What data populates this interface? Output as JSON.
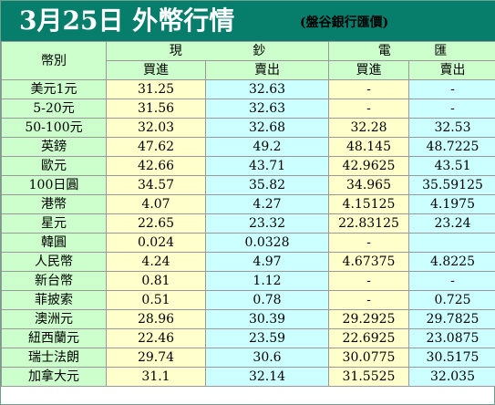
{
  "header": {
    "title": "3月25日 外幣行情",
    "subtitle": "(盤谷銀行匯價)",
    "bg_color": "#077e6c"
  },
  "table": {
    "currency_header": "幣別",
    "groups": [
      {
        "chars": [
          "現",
          "鈔"
        ]
      },
      {
        "chars": [
          "電",
          "匯"
        ]
      }
    ],
    "subheaders": [
      "買進",
      "賣出",
      "買進",
      "賣出"
    ],
    "rows": [
      {
        "name": "美元1元",
        "values": [
          "31.25",
          "32.63",
          "-",
          "-"
        ]
      },
      {
        "name": "5-20元",
        "values": [
          "31.56",
          "32.63",
          "-",
          "-"
        ]
      },
      {
        "name": "50-100元",
        "values": [
          "32.03",
          "32.68",
          "32.28",
          "32.53"
        ]
      },
      {
        "name": "英鎊",
        "values": [
          "47.62",
          "49.2",
          "48.145",
          "48.7225"
        ]
      },
      {
        "name": "歐元",
        "values": [
          "42.66",
          "43.71",
          "42.9625",
          "43.51"
        ]
      },
      {
        "name": "100日圓",
        "values": [
          "34.57",
          "35.82",
          "34.965",
          "35.59125"
        ]
      },
      {
        "name": "港幣",
        "values": [
          "4.07",
          "4.27",
          "4.15125",
          "4.1975"
        ]
      },
      {
        "name": "星元",
        "values": [
          "22.65",
          "23.32",
          "22.83125",
          "23.24"
        ]
      },
      {
        "name": "韓圓",
        "values": [
          "0.024",
          "0.0328",
          "-",
          ""
        ]
      },
      {
        "name": "人民幣",
        "values": [
          "4.24",
          "4.97",
          "4.67375",
          "4.8225"
        ]
      },
      {
        "name": "新台幣",
        "values": [
          "0.81",
          "1.12",
          "-",
          "-"
        ]
      },
      {
        "name": "菲披索",
        "values": [
          "0.51",
          "0.78",
          "-",
          "0.725"
        ]
      },
      {
        "name": "澳洲元",
        "values": [
          "28.96",
          "30.39",
          "29.2925",
          "29.7825"
        ]
      },
      {
        "name": "紐西蘭元",
        "values": [
          "22.46",
          "23.59",
          "22.6925",
          "23.0875"
        ]
      },
      {
        "name": "瑞士法朗",
        "values": [
          "29.74",
          "30.6",
          "30.0775",
          "30.5175"
        ]
      },
      {
        "name": "加拿大元",
        "values": [
          "31.1",
          "32.14",
          "31.5525",
          "32.035"
        ]
      }
    ],
    "colors": {
      "label_bg": "#ccffcc",
      "buy_bg": "#ffffcc",
      "sell_bg": "#ccffff"
    }
  }
}
